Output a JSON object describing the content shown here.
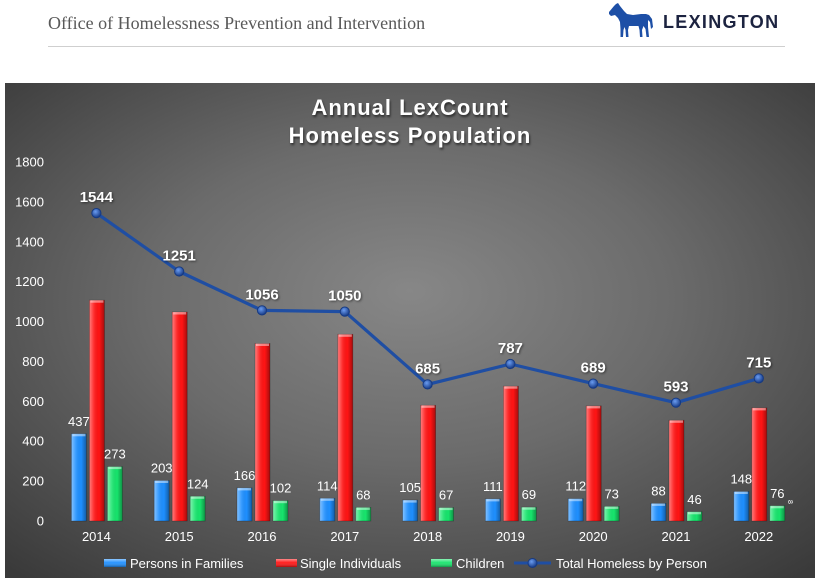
{
  "header": {
    "office_title": "Office of Homelessness Prevention and Intervention",
    "logo_text": "LEXINGTON",
    "logo_icon": "horse-icon",
    "logo_color": "#1d4fa6"
  },
  "chart_data": {
    "type": "bar",
    "title_lines": [
      "Annual LexCount",
      "Homeless Population"
    ],
    "xlabel": "",
    "ylabel": "",
    "categories": [
      "2014",
      "2015",
      "2016",
      "2017",
      "2018",
      "2019",
      "2020",
      "2021",
      "2022"
    ],
    "ylim": [
      0,
      1800
    ],
    "yticks": [
      0,
      200,
      400,
      600,
      800,
      1000,
      1200,
      1400,
      1600,
      1800
    ],
    "grid": false,
    "legend_position": "bottom",
    "background_colors": {
      "center": "#878787",
      "mid": "#6b6b6b",
      "edge": "#3a3a3a"
    },
    "series": [
      {
        "name": "Persons in Families",
        "type": "bar",
        "color": "#1e8fff",
        "data_labels": true,
        "values": [
          437,
          203,
          166,
          114,
          105,
          111,
          112,
          88,
          148
        ]
      },
      {
        "name": "Single Individuals",
        "type": "bar",
        "color": "#ff1414",
        "data_labels": false,
        "values": [
          1107,
          1048,
          890,
          936,
          580,
          676,
          577,
          505,
          567
        ]
      },
      {
        "name": "Children",
        "type": "bar",
        "color": "#17e46c",
        "data_labels": true,
        "values": [
          273,
          124,
          102,
          68,
          67,
          69,
          73,
          46,
          76
        ]
      },
      {
        "name": "Total Homeless by Person",
        "type": "line",
        "color": "#1f4ea3",
        "marker": "circle",
        "data_labels": true,
        "values": [
          1544,
          1251,
          1056,
          1050,
          685,
          787,
          689,
          593,
          715
        ]
      }
    ],
    "annotations": [
      "8"
    ]
  }
}
